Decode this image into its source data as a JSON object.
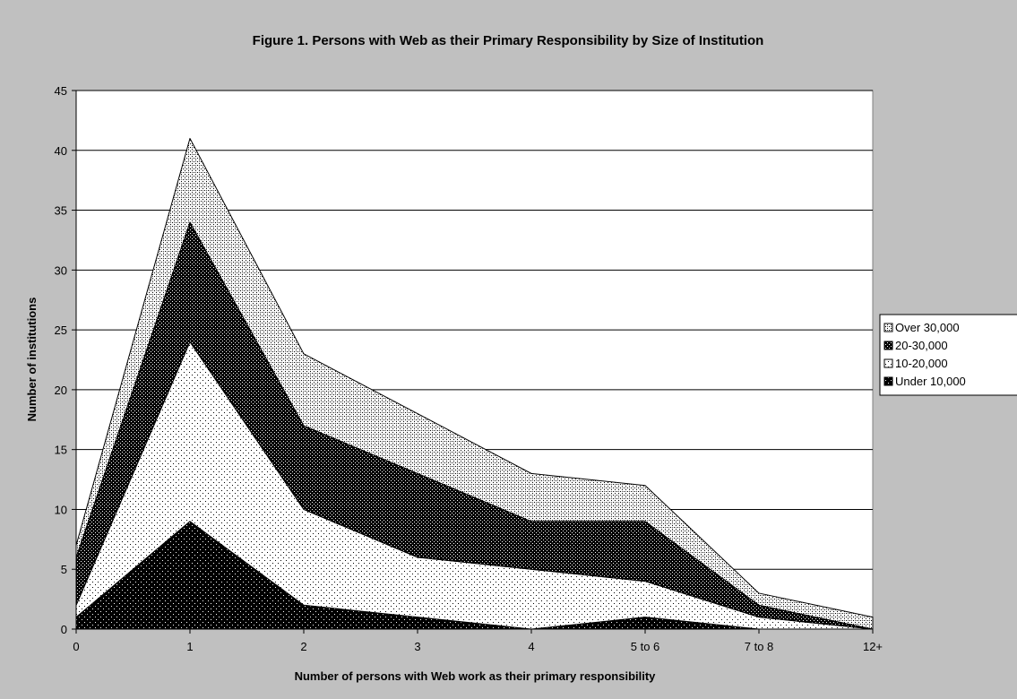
{
  "chart_data": {
    "type": "area",
    "stacked": true,
    "title": "Figure 1. Persons with Web as their Primary Responsibility by Size of Institution",
    "xlabel": "Number of persons with Web work as their primary responsibility",
    "ylabel": "Number of institutions",
    "categories": [
      "0",
      "1",
      "2",
      "3",
      "4",
      "5 to 6",
      "7 to 8",
      "12+"
    ],
    "ylim": [
      0,
      45
    ],
    "yticks": [
      0,
      5,
      10,
      15,
      20,
      25,
      30,
      35,
      40,
      45
    ],
    "grid": true,
    "legend_position": "right",
    "series": [
      {
        "name": "Under 10,000",
        "values": [
          1,
          9,
          2,
          1,
          0,
          1,
          0,
          0
        ],
        "pattern": "black-dots"
      },
      {
        "name": "10-20,000",
        "values": [
          1,
          15,
          8,
          5,
          5,
          3,
          1,
          0
        ],
        "pattern": "white-dots"
      },
      {
        "name": "20-30,000",
        "values": [
          4,
          10,
          7,
          7,
          4,
          5,
          1,
          0
        ],
        "pattern": "dark-checker"
      },
      {
        "name": "Over 30,000",
        "values": [
          1,
          7,
          6,
          5,
          4,
          3,
          1,
          1
        ],
        "pattern": "light-checker"
      }
    ],
    "colors": {
      "background": "#c0c0c0",
      "plot": "#ffffff",
      "grid": "#000000"
    }
  }
}
